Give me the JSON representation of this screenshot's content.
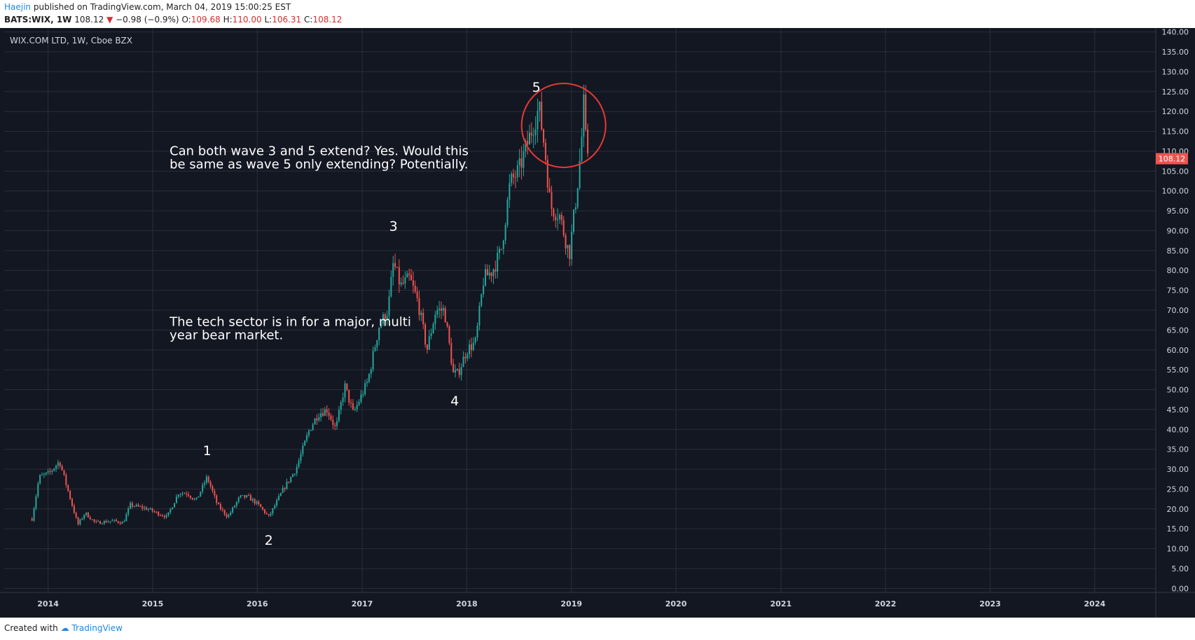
{
  "header": {
    "author": "Haejin",
    "published_text": "published on TradingView.com, March 04, 2019 15:00:25 EST",
    "symbol": "BATS:WIX, 1W",
    "last": "108.12",
    "change": "−0.98 (−0.9%)",
    "open_label": "O:",
    "open": "109.68",
    "high_label": "H:",
    "high": "110.00",
    "low_label": "L:",
    "low": "106.31",
    "close_label": "C:",
    "close": "108.12"
  },
  "footer": {
    "created_with": "Created with",
    "brand": "TradingView"
  },
  "colors": {
    "background": "#131722",
    "grid": "#2a2e39",
    "up": "#26a69a",
    "down": "#ef5350",
    "circle": "#e53935",
    "text": "#d1d4dc"
  },
  "chart_data": {
    "type": "candlestick",
    "title": "WIX.COM LTD, 1W, Cboe BZX",
    "x_ticks": [
      "2014",
      "2015",
      "2016",
      "2017",
      "2018",
      "2019",
      "2020",
      "2021",
      "2022",
      "2023",
      "2024"
    ],
    "xlim": [
      "2013-08",
      "2024-08"
    ],
    "y_ticks": [
      "0.00",
      "5.00",
      "10.00",
      "15.00",
      "20.00",
      "25.00",
      "30.00",
      "35.00",
      "40.00",
      "45.00",
      "50.00",
      "55.00",
      "60.00",
      "65.00",
      "70.00",
      "75.00",
      "80.00",
      "85.00",
      "90.00",
      "95.00",
      "100.00",
      "105.00",
      "110.00",
      "115.00",
      "120.00",
      "125.00",
      "130.00",
      "135.00",
      "140.00"
    ],
    "ylim": [
      -1,
      141
    ],
    "last_price_label": "108.12",
    "last_price": 108.12,
    "price_path": [
      [
        "2013-11-06",
        17.5
      ],
      [
        "2013-12-01",
        28
      ],
      [
        "2014-01-05",
        29
      ],
      [
        "2014-02-10",
        32
      ],
      [
        "2014-03-10",
        25
      ],
      [
        "2014-04-15",
        16
      ],
      [
        "2014-05-10",
        19
      ],
      [
        "2014-06-15",
        16.5
      ],
      [
        "2014-08-15",
        17
      ],
      [
        "2014-09-20",
        16.5
      ],
      [
        "2014-10-15",
        21
      ],
      [
        "2014-12-15",
        20
      ],
      [
        "2015-01-15",
        19
      ],
      [
        "2015-02-20",
        18
      ],
      [
        "2015-04-01",
        24
      ],
      [
        "2015-05-01",
        24
      ],
      [
        "2015-06-01",
        22
      ],
      [
        "2015-07-10",
        28
      ],
      [
        "2015-08-15",
        21
      ],
      [
        "2015-09-20",
        18
      ],
      [
        "2015-11-01",
        23
      ],
      [
        "2015-12-01",
        23
      ],
      [
        "2016-01-05",
        21
      ],
      [
        "2016-02-10",
        18
      ],
      [
        "2016-02-25",
        20
      ],
      [
        "2016-04-01",
        25
      ],
      [
        "2016-05-15",
        30
      ],
      [
        "2016-07-01",
        40
      ],
      [
        "2016-08-01",
        44
      ],
      [
        "2016-09-01",
        45
      ],
      [
        "2016-10-01",
        40
      ],
      [
        "2016-11-01",
        51
      ],
      [
        "2016-12-01",
        44
      ],
      [
        "2017-01-20",
        52
      ],
      [
        "2017-03-01",
        66
      ],
      [
        "2017-04-01",
        70
      ],
      [
        "2017-04-20",
        82
      ],
      [
        "2017-05-15",
        76
      ],
      [
        "2017-06-15",
        78
      ],
      [
        "2017-07-15",
        72
      ],
      [
        "2017-08-15",
        60
      ],
      [
        "2017-09-15",
        70
      ],
      [
        "2017-10-15",
        70
      ],
      [
        "2017-11-15",
        54
      ],
      [
        "2017-12-01",
        54
      ],
      [
        "2018-01-01",
        60
      ],
      [
        "2018-02-01",
        62
      ],
      [
        "2018-03-01",
        78
      ],
      [
        "2018-04-01",
        80
      ],
      [
        "2018-05-01",
        85
      ],
      [
        "2018-06-01",
        102
      ],
      [
        "2018-07-01",
        105
      ],
      [
        "2018-08-01",
        112
      ],
      [
        "2018-09-10",
        121
      ],
      [
        "2018-10-01",
        110
      ],
      [
        "2018-10-20",
        96
      ],
      [
        "2018-11-20",
        94
      ],
      [
        "2018-12-25",
        84
      ],
      [
        "2019-01-20",
        100
      ],
      [
        "2019-02-05",
        112
      ],
      [
        "2019-02-12",
        123
      ],
      [
        "2019-02-20",
        113
      ],
      [
        "2019-03-04",
        108
      ]
    ],
    "wave_labels": [
      {
        "label": "1",
        "date": "2015-07-10",
        "value": 33.5
      },
      {
        "label": "2",
        "date": "2016-02-10",
        "value": 11
      },
      {
        "label": "3",
        "date": "2017-04-20",
        "value": 90
      },
      {
        "label": "4",
        "date": "2017-11-20",
        "value": 46
      },
      {
        "label": "5",
        "date": "2018-09-01",
        "value": 125
      }
    ],
    "highlight_circle": {
      "date": "2018-12-05",
      "value": 116.5
    },
    "annotations": [
      {
        "lines": [
          "Can both wave 3 and 5 extend? Yes. Would this",
          "be same as wave 5 only extending? Potentially."
        ],
        "date": "2015-03-01",
        "value": 109
      },
      {
        "lines": [
          "The tech sector is in for a major, multi",
          "year bear market."
        ],
        "date": "2015-03-01",
        "value": 66
      }
    ]
  }
}
